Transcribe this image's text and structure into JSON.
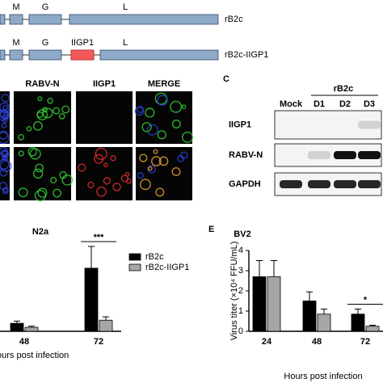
{
  "constructs": [
    {
      "name": "rB2c",
      "segments": [
        "M",
        "G",
        "L"
      ]
    },
    {
      "name": "rB2c-IIGP1",
      "segments": [
        "M",
        "G",
        "IIGP1",
        "L"
      ]
    }
  ],
  "microscopy": {
    "columns": [
      "RABV-N",
      "IIGP1",
      "MERGE"
    ]
  },
  "blot": {
    "panel": "C",
    "group": "rB2c",
    "lanes": [
      "Mock",
      "D1",
      "D2",
      "D3"
    ],
    "rows": [
      "IIGP1",
      "RABV-N",
      "GAPDH"
    ]
  },
  "chart_data": [
    {
      "type": "bar",
      "title": "N2a",
      "xlabel": "ours post infection",
      "categories": [
        "48",
        "72"
      ],
      "series": [
        {
          "name": "rB2c",
          "color": "#000000",
          "values": [
            0.36,
            2.84
          ],
          "errors": [
            0.1,
            0.98
          ]
        },
        {
          "name": "rB2c-IIGP1",
          "color": "#a6a6a6",
          "values": [
            0.18,
            0.5
          ],
          "errors": [
            0.05,
            0.15
          ]
        }
      ],
      "ylim": [
        0,
        4
      ],
      "annotations": [
        {
          "text": "***",
          "category": 1
        }
      ]
    },
    {
      "type": "bar",
      "panel": "E",
      "title": "BV2",
      "xlabel": "Hours post infection",
      "ylabel": "Virus titer (×10⁴ FFU/mL)",
      "categories": [
        "24",
        "48",
        "72"
      ],
      "series": [
        {
          "name": "rB2c",
          "color": "#000000",
          "values": [
            2.7,
            1.5,
            0.85
          ],
          "errors": [
            0.8,
            0.45,
            0.25
          ]
        },
        {
          "name": "rB2c-IIGP1",
          "color": "#a6a6a6",
          "values": [
            2.7,
            0.85,
            0.25
          ],
          "errors": [
            0.8,
            0.25,
            0.05
          ]
        }
      ],
      "ylim": [
        0,
        4
      ],
      "yticks": [
        0,
        1,
        2,
        3,
        4
      ],
      "annotations": [
        {
          "text": "*",
          "category": 2
        }
      ]
    }
  ]
}
